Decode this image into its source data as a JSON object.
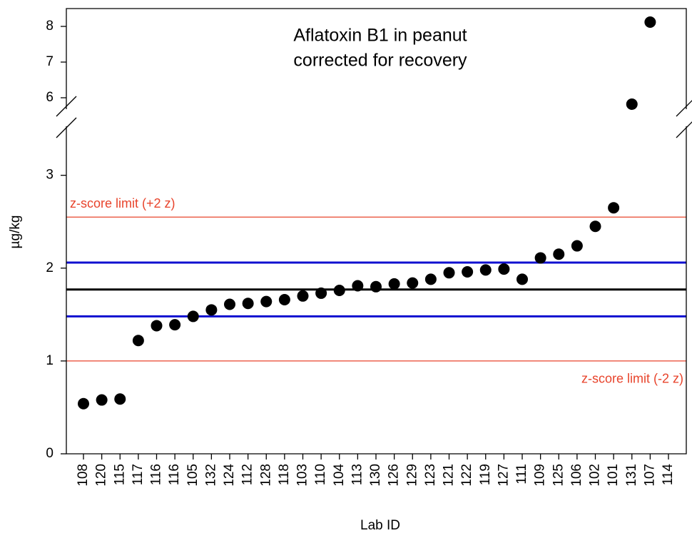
{
  "chart_data": {
    "type": "scatter",
    "title": [
      "Aflatoxin B1 in peanut",
      "corrected for recovery"
    ],
    "x_label": "Lab ID",
    "y_label": "µg/kg",
    "categories": [
      "108",
      "120",
      "115",
      "117",
      "116",
      "116",
      "105",
      "132",
      "124",
      "112",
      "128",
      "118",
      "103",
      "110",
      "104",
      "113",
      "130",
      "126",
      "129",
      "123",
      "121",
      "122",
      "119",
      "127",
      "111",
      "109",
      "125",
      "106",
      "102",
      "101",
      "131",
      "107",
      "114"
    ],
    "values": [
      0.54,
      0.58,
      0.59,
      1.22,
      1.38,
      1.39,
      1.48,
      1.55,
      1.61,
      1.62,
      1.64,
      1.66,
      1.7,
      1.73,
      1.76,
      1.81,
      1.8,
      1.83,
      1.84,
      1.88,
      1.95,
      1.96,
      1.98,
      1.99,
      1.88,
      2.11,
      2.15,
      2.24,
      2.45,
      2.65,
      5.82,
      8.12,
      null
    ],
    "color": "#000000",
    "ylim": [
      0,
      8.5
    ],
    "y_break": [
      3.62,
      5.44
    ],
    "yticks": [
      0,
      1,
      2,
      3,
      6,
      7,
      8
    ],
    "reference_lines": [
      {
        "value": 2.55,
        "color": "#e8442c",
        "label": "z-score limit (+2 z)"
      },
      {
        "value": 2.06,
        "color": "#1010d0"
      },
      {
        "value": 1.77,
        "color": "#000000"
      },
      {
        "value": 1.48,
        "color": "#1010d0"
      },
      {
        "value": 1.0,
        "color": "#e8442c",
        "label": "z-score limit (-2 z)"
      }
    ]
  }
}
